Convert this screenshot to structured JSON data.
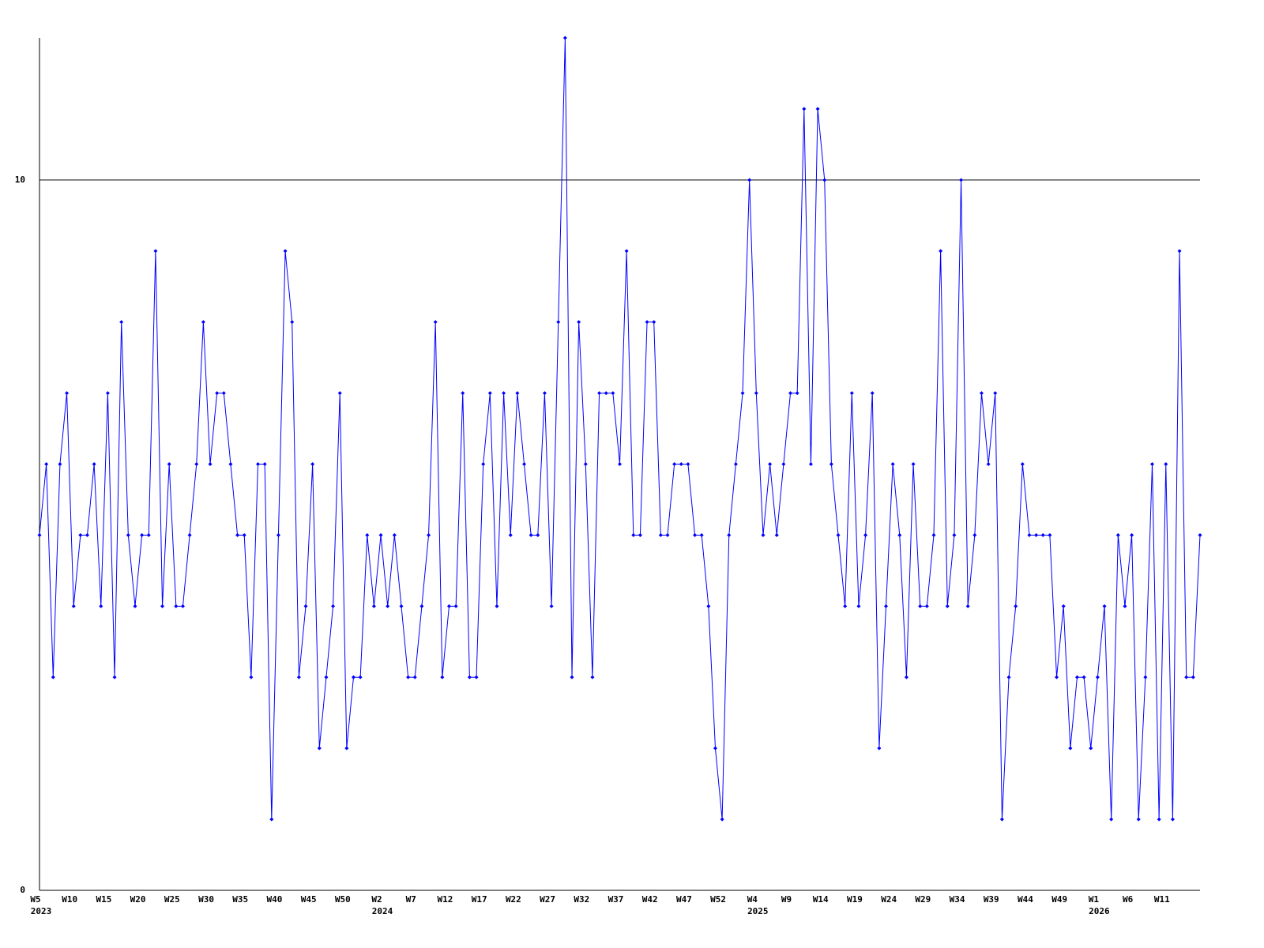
{
  "chart_data": {
    "type": "line",
    "categories": [
      "W5",
      null,
      null,
      null,
      null,
      "W10",
      null,
      null,
      null,
      null,
      "W15",
      null,
      null,
      null,
      null,
      "W20",
      null,
      null,
      null,
      null,
      "W25",
      null,
      null,
      null,
      null,
      "W30",
      null,
      null,
      null,
      null,
      "W35",
      null,
      null,
      null,
      null,
      "W40",
      null,
      null,
      null,
      null,
      "W45",
      null,
      null,
      null,
      null,
      "W50",
      null,
      null,
      null,
      null,
      "W2",
      null,
      null,
      null,
      null,
      "W7",
      null,
      null,
      null,
      null,
      "W12",
      null,
      null,
      null,
      null,
      "W17",
      null,
      null,
      null,
      null,
      "W22",
      null,
      null,
      null,
      null,
      "W27",
      null,
      null,
      null,
      null,
      "W32",
      null,
      null,
      null,
      null,
      "W37",
      null,
      null,
      null,
      null,
      "W42",
      null,
      null,
      null,
      null,
      "W47",
      null,
      null,
      null,
      null,
      "W52",
      null,
      null,
      null,
      null,
      "W4",
      null,
      null,
      null,
      null,
      "W9",
      null,
      null,
      null,
      null,
      "W14",
      null,
      null,
      null,
      null,
      "W19",
      null,
      null,
      null,
      null,
      "W24",
      null,
      null,
      null,
      null,
      "W29",
      null,
      null,
      null,
      null,
      "W34",
      null,
      null,
      null,
      null,
      "W39",
      null,
      null,
      null,
      null,
      "W44",
      null,
      null,
      null,
      null,
      "W49",
      null,
      null,
      null,
      null,
      "W1",
      null,
      null,
      null,
      null,
      "W6",
      null,
      null,
      null,
      null,
      "W11",
      null,
      null,
      null,
      null,
      null
    ],
    "x_sublabels": [
      "2023",
      null,
      null,
      null,
      null,
      null,
      null,
      null,
      null,
      null,
      null,
      null,
      null,
      null,
      null,
      null,
      null,
      null,
      null,
      null,
      null,
      null,
      null,
      null,
      null,
      null,
      null,
      null,
      null,
      null,
      null,
      null,
      null,
      null,
      null,
      null,
      null,
      null,
      null,
      null,
      null,
      null,
      null,
      null,
      null,
      null,
      null,
      null,
      null,
      null,
      "2024",
      null,
      null,
      null,
      null,
      null,
      null,
      null,
      null,
      null,
      null,
      null,
      null,
      null,
      null,
      null,
      null,
      null,
      null,
      null,
      null,
      null,
      null,
      null,
      null,
      null,
      null,
      null,
      null,
      null,
      null,
      null,
      null,
      null,
      null,
      null,
      null,
      null,
      null,
      null,
      null,
      null,
      null,
      null,
      null,
      null,
      null,
      null,
      null,
      null,
      null,
      null,
      null,
      null,
      null,
      "2025",
      null,
      null,
      null,
      null,
      null,
      null,
      null,
      null,
      null,
      null,
      null,
      null,
      null,
      null,
      null,
      null,
      null,
      null,
      null,
      null,
      null,
      null,
      null,
      null,
      null,
      null,
      null,
      null,
      null,
      null,
      null,
      null,
      null,
      null,
      null,
      null,
      null,
      null,
      null,
      null,
      null,
      null,
      null,
      null,
      null,
      null,
      null,
      null,
      null,
      "2026",
      null,
      null,
      null,
      null,
      null,
      null,
      null,
      null,
      null,
      null,
      null,
      null,
      null,
      null,
      null
    ],
    "values": [
      5,
      6,
      3,
      6,
      7,
      4,
      5,
      5,
      6,
      4,
      7,
      3,
      8,
      5,
      4,
      5,
      5,
      9,
      4,
      6,
      4,
      4,
      5,
      6,
      8,
      6,
      7,
      7,
      6,
      5,
      5,
      3,
      6,
      6,
      1,
      5,
      9,
      8,
      3,
      4,
      6,
      2,
      3,
      4,
      7,
      2,
      3,
      3,
      5,
      4,
      5,
      4,
      5,
      4,
      3,
      3,
      4,
      5,
      8,
      3,
      4,
      4,
      7,
      3,
      3,
      6,
      7,
      4,
      7,
      5,
      7,
      6,
      5,
      5,
      7,
      4,
      8,
      12,
      3,
      8,
      6,
      3,
      7,
      7,
      7,
      6,
      9,
      5,
      5,
      8,
      8,
      5,
      5,
      6,
      6,
      6,
      5,
      5,
      4,
      2,
      1,
      5,
      6,
      7,
      10,
      7,
      5,
      6,
      5,
      6,
      7,
      7,
      11,
      6,
      11,
      10,
      6,
      5,
      4,
      7,
      4,
      5,
      7,
      2,
      4,
      6,
      5,
      3,
      6,
      4,
      4,
      5,
      9,
      4,
      5,
      10,
      4,
      5,
      7,
      6,
      7,
      1,
      3,
      4,
      6,
      5,
      5,
      5,
      5,
      3,
      4,
      2,
      3,
      3,
      2,
      3,
      4,
      1,
      5,
      4,
      5,
      1,
      3,
      6,
      1,
      6,
      1,
      9,
      3,
      3,
      5
    ],
    "color": "#0000ff",
    "ylim": [
      0,
      12
    ],
    "yticks": [
      0,
      10
    ],
    "grid": true
  }
}
